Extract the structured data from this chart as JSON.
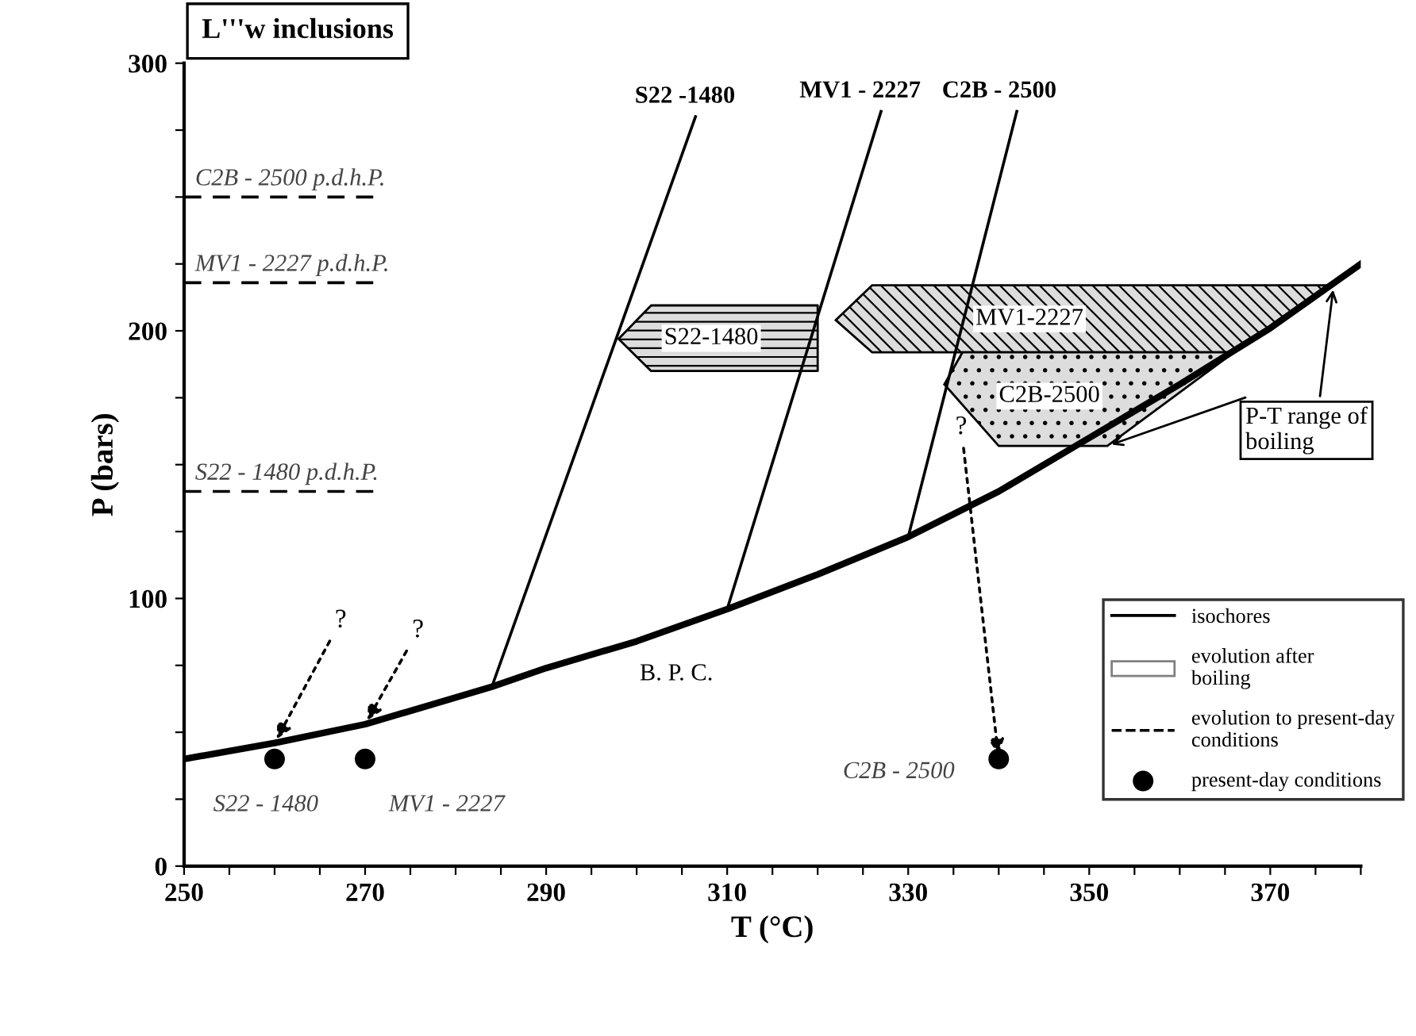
{
  "chart_data": {
    "type": "line",
    "title": "L'''w inclusions",
    "xlabel": "T (°C)",
    "ylabel": "P (bars)",
    "xlim": [
      250,
      380
    ],
    "ylim": [
      0,
      300
    ],
    "xticks": [
      250,
      {
        "value": 255,
        "label": null
      },
      {
        "value": 260,
        "label": null
      },
      {
        "value": 265,
        "label": null
      },
      270,
      {
        "value": 275,
        "label": null
      },
      {
        "value": 280,
        "label": null
      },
      {
        "value": 285,
        "label": null
      },
      290,
      {
        "value": 295,
        "label": null
      },
      {
        "value": 300,
        "label": null
      },
      {
        "value": 305,
        "label": null
      },
      310,
      {
        "value": 315,
        "label": null
      },
      {
        "value": 320,
        "label": null
      },
      {
        "value": 325,
        "label": null
      },
      330,
      {
        "value": 335,
        "label": null
      },
      {
        "value": 340,
        "label": null
      },
      {
        "value": 345,
        "label": null
      },
      350,
      {
        "value": 355,
        "label": null
      },
      {
        "value": 360,
        "label": null
      },
      {
        "value": 365,
        "label": null
      },
      370,
      {
        "value": 375,
        "label": null
      },
      {
        "value": 380,
        "label": null
      }
    ],
    "yticks": [
      0,
      {
        "value": 25,
        "label": null
      },
      {
        "value": 50,
        "label": null
      },
      {
        "value": 75,
        "label": null
      },
      100,
      {
        "value": 125,
        "label": null
      },
      {
        "value": 150,
        "label": null
      },
      {
        "value": 175,
        "label": null
      },
      200,
      {
        "value": 225,
        "label": null
      },
      {
        "value": 250,
        "label": null
      },
      {
        "value": 275,
        "label": null
      },
      300
    ],
    "grid": false,
    "legend": "bottom right",
    "series": [
      {
        "color": "#000000",
        "line_style": "solid",
        "x": [
          250,
          260,
          270,
          284,
          290,
          300,
          310,
          320,
          330,
          340,
          350,
          360,
          370,
          380
        ],
        "values": [
          40,
          46,
          53,
          67,
          74,
          84,
          96,
          109,
          123,
          140,
          160,
          180,
          201,
          225
        ]
      },
      {
        "name": "isochores",
        "color": "#000000",
        "line_style": "solid",
        "x": [
          284,
          306.5,
          308,
          310,
          327,
          328,
          330,
          342
        ],
        "values": [
          67,
          280,
          null,
          96,
          282,
          null,
          123,
          282
        ]
      },
      {
        "type": "area",
        "name": "S22-1480",
        "color": "#dddddd",
        "x": [
          298,
          301.6,
          320,
          320,
          301.6
        ],
        "values": [
          197,
          209.5,
          209.5,
          185,
          185
        ]
      },
      {
        "type": "area",
        "name": "MV1-2227",
        "color": "#dddddd",
        "x": [
          322,
          326,
          377,
          366,
          326
        ],
        "values": [
          204,
          217,
          217,
          192,
          192
        ]
      },
      {
        "type": "area",
        "name": "C2B-2500",
        "color": "#dddddd",
        "x": [
          334,
          336,
          366,
          352,
          340
        ],
        "values": [
          180,
          192,
          192,
          157,
          157
        ]
      },
      {
        "type": "scatter",
        "name": "present-day conditions",
        "color": "#000000",
        "marker": "circle",
        "x": [
          260,
          270,
          340
        ],
        "values": [
          40,
          40,
          40
        ]
      }
    ],
    "ref_lines": [
      {
        "axis": "y",
        "value": 250,
        "label": "C2B - 2500 p.d.h.P.",
        "line_style": "dashed",
        "color": "#000000"
      },
      {
        "axis": "y",
        "value": 218,
        "label": "MV1 - 2227 p.d.h.P.",
        "line_style": "dashed",
        "color": "#000000"
      },
      {
        "axis": "y",
        "value": 140,
        "label": "S22 - 1480 p.d.h.P.",
        "line_style": "dashed",
        "color": "#000000"
      }
    ],
    "annotations": [
      "evolution after\nboiling",
      "evolution to present-day\nconditions",
      {
        "text": "B. P. C.",
        "x": 300,
        "y": 84
      },
      {
        "text": "P-T range of\nboiling",
        "x": 377,
        "y": 217
      },
      {
        "text": "?",
        "x": 260,
        "y": 46
      },
      {
        "text": "?",
        "x": 270,
        "y": 53
      },
      {
        "text": "?",
        "x": 340,
        "y": 40
      },
      {
        "text": "S22 - 1480",
        "x": 260,
        "y": 40
      },
      {
        "text": "MV1 - 2227",
        "x": 270,
        "y": 40
      },
      {
        "text": "C2B - 2500",
        "x": 340,
        "y": 40
      },
      {
        "text": "S22 -1480",
        "x": 306.5,
        "y": 280
      },
      {
        "text": "MV1 - 2227",
        "x": 327,
        "y": 282
      },
      {
        "text": "C2B - 2500",
        "x": 342,
        "y": 282
      }
    ]
  }
}
